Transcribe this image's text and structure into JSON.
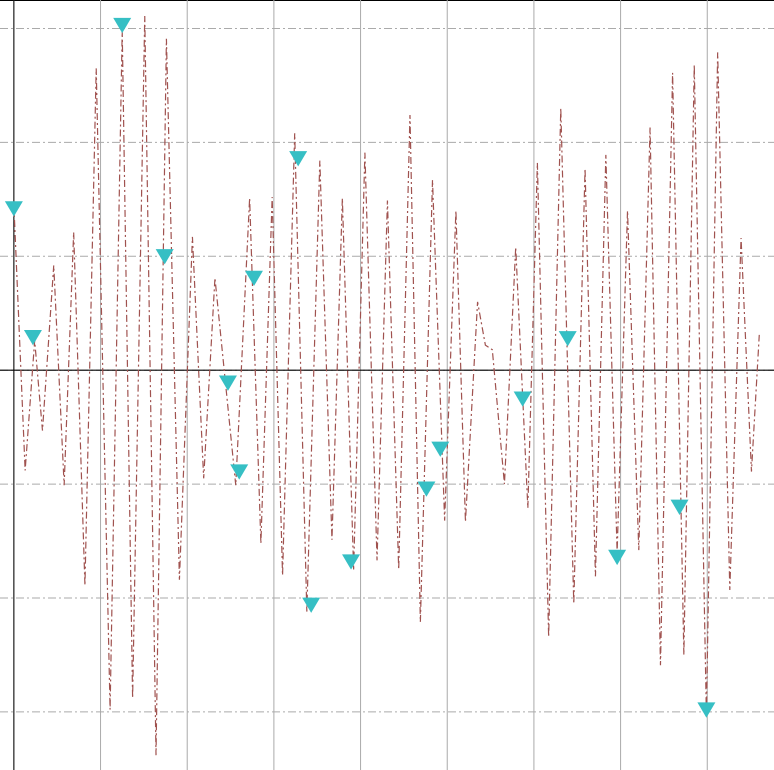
{
  "chart_data": {
    "type": "line",
    "xlim": [
      -0.16,
      8.77
    ],
    "ylim": [
      -3.51,
      3.25
    ],
    "xticks": [
      0,
      1,
      2,
      3,
      4,
      5,
      6,
      7,
      8
    ],
    "yticks": [
      -3,
      -2,
      -1,
      0,
      1,
      2,
      3
    ],
    "grid": true,
    "series": [
      {
        "type": "line",
        "color": "#a0524f",
        "linestyle": "dashdot",
        "x": [
          0,
          0.13,
          0.24,
          0.33,
          0.46,
          0.58,
          0.69,
          0.82,
          0.95,
          1.11,
          1.25,
          1.37,
          1.51,
          1.64,
          1.76,
          1.91,
          2.06,
          2.19,
          2.32,
          2.56,
          2.72,
          2.85,
          2.98,
          3.1,
          3.24,
          3.38,
          3.53,
          3.67,
          3.79,
          3.92,
          4.05,
          4.19,
          4.31,
          4.44,
          4.57,
          4.69,
          4.83,
          4.97,
          5.1,
          5.21,
          5.35,
          5.44,
          5.52,
          5.66,
          5.79,
          5.93,
          6.04,
          6.17,
          6.31,
          6.46,
          6.59,
          6.71,
          6.83,
          6.96,
          7.08,
          7.21,
          7.34,
          7.46,
          7.6,
          7.73,
          7.85,
          7.99,
          8.12,
          8.26,
          8.39,
          8.51,
          8.6
        ],
        "values": [
          1.45,
          -0.88,
          0.26,
          -0.53,
          0.92,
          -1.01,
          1.21,
          -1.89,
          2.65,
          -2.98,
          2.98,
          -2.88,
          3.11,
          -3.38,
          2.91,
          -1.84,
          1.17,
          -0.95,
          0.81,
          -1.01,
          1.51,
          -1.52,
          1.52,
          -1.8,
          2.08,
          -2.12,
          1.84,
          -1.49,
          1.51,
          -1.75,
          1.91,
          -1.67,
          1.49,
          -1.75,
          2.24,
          -2.21,
          1.67,
          -1.32,
          1.4,
          -1.33,
          0.6,
          0.22,
          0.18,
          -1.0,
          1.08,
          -1.21,
          1.82,
          -2.34,
          2.3,
          -2.05,
          1.77,
          -1.81,
          1.89,
          -1.6,
          1.4,
          -1.58,
          2.13,
          -2.59,
          2.61,
          -2.5,
          2.68,
          -3.03,
          2.79,
          -1.93,
          1.16,
          -0.89,
          0.31
        ]
      },
      {
        "type": "scatter",
        "marker": "triangle-down",
        "color": "#36bfc4",
        "x": [
          0,
          0.22,
          1.25,
          1.74,
          2.47,
          2.6,
          2.77,
          3.28,
          3.43,
          3.89,
          4.76,
          4.92,
          5.87,
          6.39,
          6.96,
          7.68,
          7.99
        ],
        "values": [
          1.42,
          0.29,
          3.03,
          1.0,
          -0.11,
          -0.89,
          0.81,
          1.86,
          -2.06,
          -1.68,
          -1.04,
          -0.69,
          -0.25,
          0.28,
          -1.64,
          -1.2,
          -2.98
        ]
      }
    ]
  }
}
